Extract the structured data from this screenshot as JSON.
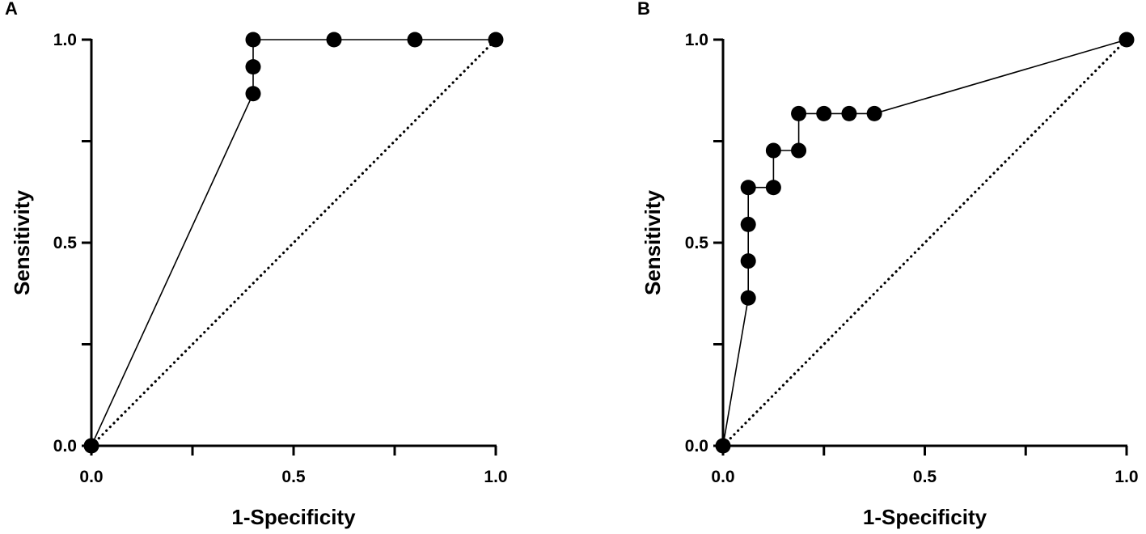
{
  "chart_data": [
    {
      "type": "line",
      "panel_label": "A",
      "title": "",
      "xlabel": "1-Specificity",
      "ylabel": "Sensitivity",
      "xlim": [
        0,
        1
      ],
      "ylim": [
        0,
        1
      ],
      "x_ticks": [
        0.0,
        0.25,
        0.5,
        0.75,
        1.0
      ],
      "y_ticks": [
        0.0,
        0.25,
        0.5,
        0.75,
        1.0
      ],
      "x_tick_labels": [
        "0.0",
        "",
        "0.5",
        "",
        "1.0"
      ],
      "y_tick_labels": [
        "0.0",
        "",
        "0.5",
        "",
        "1.0"
      ],
      "grid": false,
      "series": [
        {
          "name": "ROC curve",
          "style": "solid-with-markers",
          "x": [
            0.0,
            0.4,
            0.4,
            0.4,
            0.6,
            0.8,
            1.0
          ],
          "y": [
            0.0,
            0.867,
            0.933,
            1.0,
            1.0,
            1.0,
            1.0
          ]
        },
        {
          "name": "Reference line",
          "style": "dotted",
          "x": [
            0.0,
            1.0
          ],
          "y": [
            0.0,
            1.0
          ]
        }
      ]
    },
    {
      "type": "line",
      "panel_label": "B",
      "title": "",
      "xlabel": "1-Specificity",
      "ylabel": "Sensitivity",
      "xlim": [
        0,
        1
      ],
      "ylim": [
        0,
        1
      ],
      "x_ticks": [
        0.0,
        0.25,
        0.5,
        0.75,
        1.0
      ],
      "y_ticks": [
        0.0,
        0.25,
        0.5,
        0.75,
        1.0
      ],
      "x_tick_labels": [
        "0.0",
        "",
        "0.5",
        "",
        "1.0"
      ],
      "y_tick_labels": [
        "0.0",
        "",
        "0.5",
        "",
        "1.0"
      ],
      "grid": false,
      "series": [
        {
          "name": "ROC curve",
          "style": "solid-with-markers",
          "x": [
            0.0,
            0.0625,
            0.0625,
            0.0625,
            0.0625,
            0.125,
            0.125,
            0.1875,
            0.1875,
            0.25,
            0.3125,
            0.375,
            1.0
          ],
          "y": [
            0.0,
            0.364,
            0.455,
            0.545,
            0.636,
            0.636,
            0.727,
            0.727,
            0.818,
            0.818,
            0.818,
            0.818,
            1.0
          ]
        },
        {
          "name": "Reference line",
          "style": "dotted",
          "x": [
            0.0,
            1.0
          ],
          "y": [
            0.0,
            1.0
          ]
        }
      ]
    }
  ]
}
